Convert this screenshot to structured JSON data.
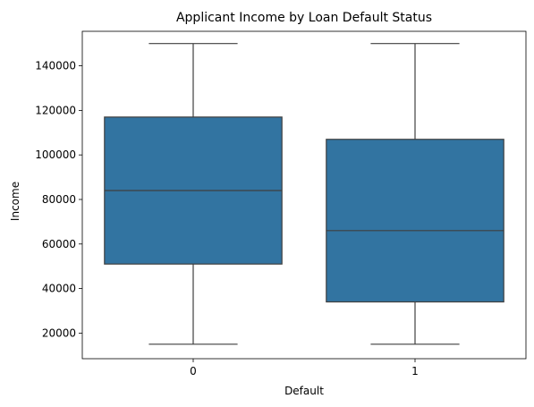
{
  "chart_data": {
    "type": "box",
    "title": "Applicant Income by Loan Default Status",
    "xlabel": "Default",
    "ylabel": "Income",
    "ylim": [
      8500,
      155500
    ],
    "yticks": [
      20000,
      40000,
      60000,
      80000,
      100000,
      120000,
      140000
    ],
    "grid": false,
    "categories": [
      "0",
      "1"
    ],
    "boxes": [
      {
        "category": "0",
        "whisker_low": 15000,
        "q1": 51000,
        "median": 84000,
        "q3": 117000,
        "whisker_high": 150000
      },
      {
        "category": "1",
        "whisker_low": 15000,
        "q1": 34000,
        "median": 66000,
        "q3": 107000,
        "whisker_high": 150000
      }
    ],
    "box_color": "#3274a1",
    "line_color": "#3f3f3f"
  }
}
